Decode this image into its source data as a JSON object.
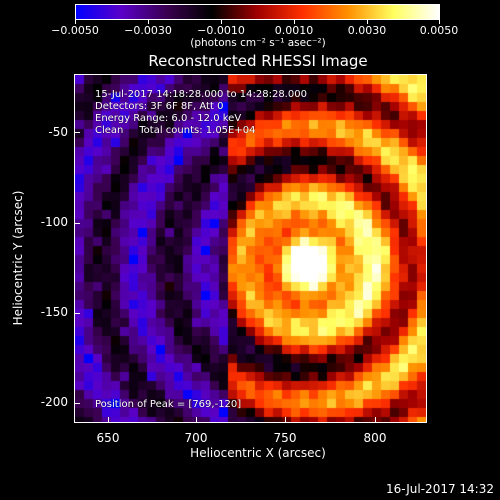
{
  "colorbar": {
    "tick_labels": [
      "−0.0050",
      "−0.0030",
      "−0.0010",
      "0.0010",
      "0.0030",
      "0.0050"
    ],
    "units_label": "(photons cm⁻² s⁻¹ asec⁻²)",
    "colors": [
      "#0000ff",
      "#5a00c8",
      "#3a0050",
      "#000000",
      "#a00000",
      "#ff3000",
      "#ff9000",
      "#ffff60",
      "#ffffff"
    ]
  },
  "title": "Reconstructed RHESSI Image",
  "info_lines": [
    "15-Jul-2017 14:18:28.000 to 14:28:28.000",
    "Detectors: 3F 6F 8F, Att 0",
    "Energy Range: 6.0 - 12.0 keV",
    "Clean     Total counts: 1.05E+04"
  ],
  "peak_label": "Position of Peak = [769,-120]",
  "x_axis": {
    "title": "Heliocentric X (arcsec)",
    "ticks": [
      "650",
      "700",
      "750",
      "800"
    ]
  },
  "y_axis": {
    "title": "Heliocentric Y (arcsec)",
    "ticks": [
      "-50",
      "-100",
      "-150",
      "-200"
    ]
  },
  "footer_timestamp": "16-Jul-2017 14:32"
}
